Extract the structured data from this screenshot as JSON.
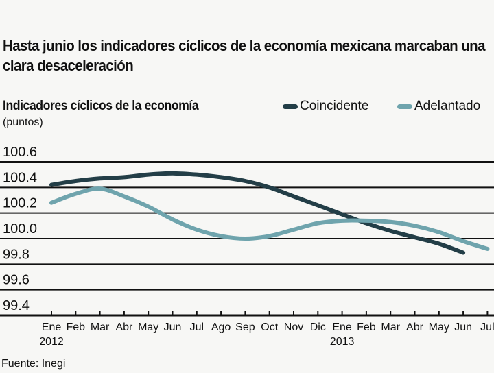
{
  "headline": "Hasta junio los indicadores cíclicos de la economía mexicana marcaban una clara desaceleración",
  "source": "Fuente: Inegi",
  "chart_data": {
    "type": "line",
    "title": "Indicadores cíclicos de la economía",
    "ylabel": "(puntos)",
    "xlabel": "",
    "ylim": [
      99.4,
      100.6
    ],
    "yticks": [
      "100.6",
      "100.4",
      "100.2",
      "100.0",
      "99.8",
      "99.6",
      "99.4"
    ],
    "grid": true,
    "legend_position": "top-right",
    "x": [
      "Ene",
      "Feb",
      "Mar",
      "Abr",
      "May",
      "Jun",
      "Jul",
      "Ago",
      "Sep",
      "Oct",
      "Nov",
      "Dic",
      "Ene",
      "Feb",
      "Mar",
      "Abr",
      "May",
      "Jun",
      "Jul"
    ],
    "year_labels": [
      {
        "index": 0,
        "label": "2012"
      },
      {
        "index": 12,
        "label": "2013"
      }
    ],
    "series": [
      {
        "name": "Coincidente",
        "color": "#233e47",
        "values": [
          100.42,
          100.45,
          100.47,
          100.48,
          100.5,
          100.51,
          100.5,
          100.48,
          100.45,
          100.4,
          100.33,
          100.26,
          100.19,
          100.12,
          100.06,
          100.01,
          99.96,
          99.89,
          null
        ]
      },
      {
        "name": "Adelantado",
        "color": "#6fa4ad",
        "values": [
          100.28,
          100.35,
          100.39,
          100.33,
          100.25,
          100.15,
          100.07,
          100.02,
          100.0,
          100.02,
          100.07,
          100.12,
          100.14,
          100.14,
          100.13,
          100.1,
          100.05,
          99.98,
          99.92
        ]
      }
    ]
  }
}
